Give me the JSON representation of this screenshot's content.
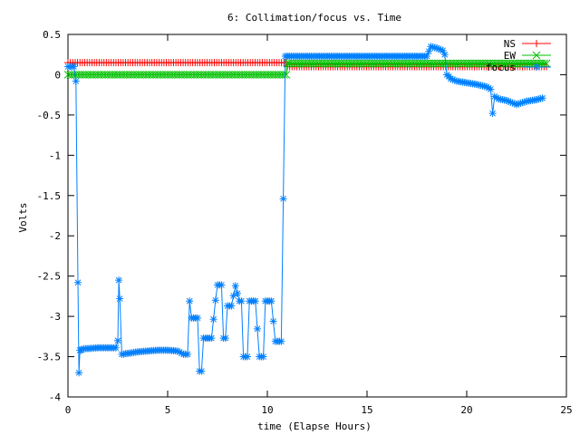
{
  "chart_data": {
    "type": "line",
    "title": "6: Collimation/focus vs. Time",
    "xlabel": "time (Elapse Hours)",
    "ylabel": "Volts",
    "xlim": [
      0,
      25
    ],
    "ylim": [
      -4,
      0.5
    ],
    "xticks": [
      0,
      5,
      10,
      15,
      20,
      25
    ],
    "xtick_labels": [
      "0",
      "5",
      "10",
      "15",
      "20",
      "25"
    ],
    "yticks": [
      0.5,
      0,
      -0.5,
      -1,
      -1.5,
      -2,
      -2.5,
      -3,
      -3.5,
      -4
    ],
    "ytick_labels": [
      "0.5",
      "0",
      "-0.5",
      "-1",
      "-1.5",
      "-2",
      "-2.5",
      "-3",
      "-3.5",
      "-4"
    ],
    "grid": false,
    "legend_position": "top-right",
    "series": [
      {
        "name": "NS",
        "color": "#ff0000",
        "marker": "plus",
        "x": [
          0,
          10.95,
          11.0,
          24
        ],
        "y": [
          0.15,
          0.15,
          0.1,
          0.1
        ]
      },
      {
        "name": "EW",
        "color": "#00c000",
        "marker": "cross",
        "x": [
          0,
          10.95,
          11.0,
          24
        ],
        "y": [
          0.0,
          0.0,
          0.14,
          0.14
        ]
      },
      {
        "name": "focus",
        "color": "#0080ff",
        "marker": "star",
        "x": [
          0.0,
          0.1,
          0.2,
          0.3,
          0.4,
          0.5,
          0.55,
          0.6,
          0.65,
          0.7,
          0.8,
          1.0,
          1.5,
          2.0,
          2.4,
          2.5,
          2.55,
          2.6,
          2.7,
          2.8,
          2.9,
          3.0,
          3.5,
          4.0,
          4.5,
          5.0,
          5.5,
          5.8,
          6.0,
          6.1,
          6.2,
          6.3,
          6.5,
          6.6,
          6.7,
          6.8,
          6.9,
          7.0,
          7.2,
          7.4,
          7.5,
          7.6,
          7.7,
          7.8,
          7.9,
          8.0,
          8.1,
          8.2,
          8.4,
          8.6,
          8.7,
          8.8,
          8.9,
          9.0,
          9.1,
          9.2,
          9.3,
          9.4,
          9.6,
          9.8,
          9.9,
          10.0,
          10.1,
          10.2,
          10.4,
          10.6,
          10.7,
          10.9,
          11.0,
          11.1,
          11.5,
          12.0,
          13.0,
          14.0,
          15.0,
          16.0,
          17.0,
          18.0,
          18.2,
          18.5,
          18.8,
          18.9,
          19.0,
          19.1,
          19.2,
          19.5,
          20.0,
          20.5,
          21.0,
          21.2,
          21.3,
          21.4,
          21.6,
          22.0,
          22.5,
          23.0,
          23.5,
          23.8
        ],
        "y": [
          0.1,
          0.1,
          0.1,
          0.1,
          -0.08,
          -2.58,
          -3.7,
          -3.42,
          -3.42,
          -3.41,
          -3.4,
          -3.4,
          -3.39,
          -3.39,
          -3.39,
          -3.3,
          -2.55,
          -2.78,
          -3.47,
          -3.47,
          -3.46,
          -3.46,
          -3.44,
          -3.43,
          -3.42,
          -3.42,
          -3.43,
          -3.47,
          -3.47,
          -2.81,
          -3.02,
          -3.02,
          -3.02,
          -3.68,
          -3.68,
          -3.27,
          -3.27,
          -3.27,
          -3.27,
          -2.8,
          -2.61,
          -2.61,
          -2.61,
          -3.27,
          -3.27,
          -2.87,
          -2.87,
          -2.87,
          -2.62,
          -2.81,
          -2.81,
          -3.5,
          -3.5,
          -3.5,
          -2.81,
          -2.81,
          -2.81,
          -2.81,
          -3.5,
          -3.5,
          -2.81,
          -2.81,
          -2.81,
          -2.81,
          -3.31,
          -3.31,
          -3.31,
          0.23,
          0.23,
          0.23,
          0.23,
          0.23,
          0.23,
          0.23,
          0.23,
          0.23,
          0.23,
          0.23,
          0.35,
          0.33,
          0.3,
          0.25,
          0.0,
          -0.02,
          -0.05,
          -0.08,
          -0.1,
          -0.12,
          -0.15,
          -0.18,
          -0.48,
          -0.27,
          -0.3,
          -0.32,
          -0.37,
          -0.33,
          -0.31,
          -0.29
        ]
      }
    ]
  }
}
